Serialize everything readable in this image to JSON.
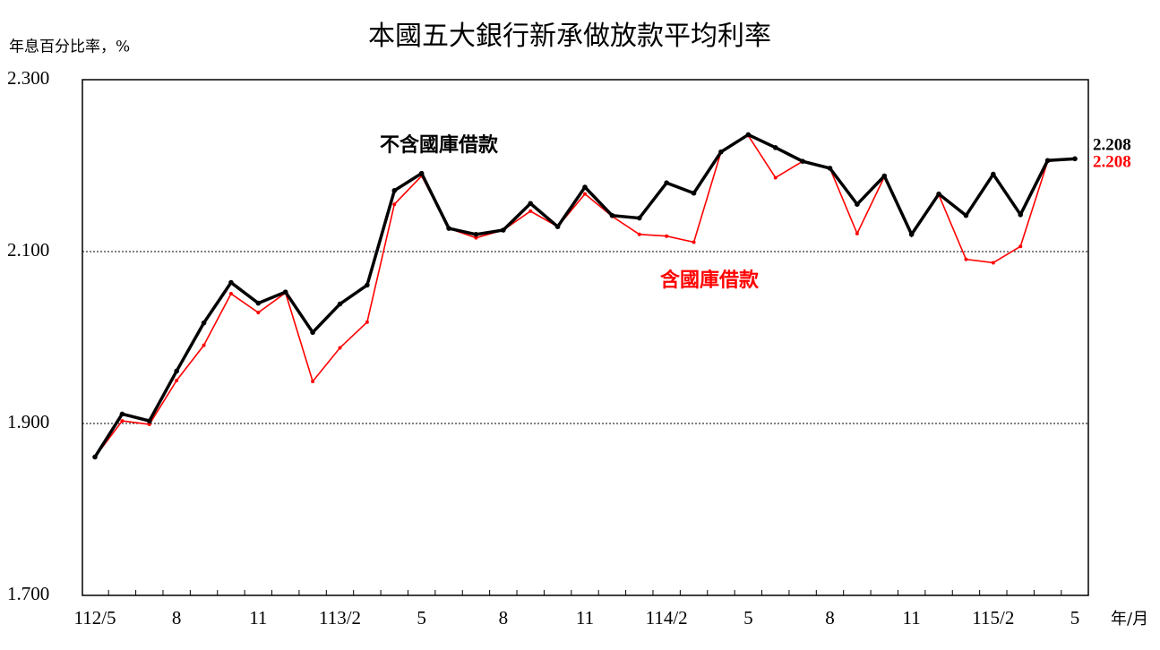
{
  "chart_data": {
    "type": "line",
    "title": "本國五大銀行新承做放款平均利率",
    "y_label": "年息百分比率，%",
    "x_label": "年/月",
    "categories": [
      "112/5",
      null,
      null,
      "8",
      null,
      null,
      "11",
      null,
      null,
      "113/2",
      null,
      null,
      "5",
      null,
      null,
      "8",
      null,
      null,
      "11",
      null,
      null,
      "114/2",
      null,
      null,
      "5",
      null,
      null,
      "8",
      null,
      null,
      "11",
      null,
      null,
      "115/2",
      null,
      null,
      "5"
    ],
    "series": [
      {
        "name": "不含國庫借款",
        "color": "#000000",
        "values": [
          1.861,
          1.911,
          1.903,
          1.961,
          2.017,
          2.064,
          2.04,
          2.053,
          2.006,
          2.039,
          2.061,
          2.171,
          2.191,
          2.127,
          2.12,
          2.125,
          2.156,
          2.129,
          2.175,
          2.142,
          2.139,
          2.18,
          2.168,
          2.216,
          2.236,
          2.221,
          2.205,
          2.197,
          2.155,
          2.188,
          2.12,
          2.167,
          2.142,
          2.19,
          2.143,
          2.206,
          2.208
        ]
      },
      {
        "name": "含國庫借款",
        "color": "#ff0000",
        "values": [
          1.861,
          1.903,
          1.899,
          1.95,
          1.991,
          2.051,
          2.029,
          2.052,
          1.949,
          1.988,
          2.018,
          2.155,
          2.188,
          2.127,
          2.116,
          2.125,
          2.147,
          2.129,
          2.167,
          2.141,
          2.12,
          2.118,
          2.111,
          2.216,
          2.235,
          2.186,
          2.205,
          2.197,
          2.121,
          2.187,
          2.12,
          2.166,
          2.091,
          2.087,
          2.106,
          2.205,
          2.208
        ]
      }
    ],
    "ylim": [
      1.7,
      2.3
    ],
    "yticks": [
      {
        "value": 1.7,
        "label": "1.700"
      },
      {
        "value": 1.9,
        "label": "1.900"
      },
      {
        "value": 2.1,
        "label": "2.100"
      },
      {
        "value": 2.3,
        "label": "2.300"
      }
    ],
    "grid": true
  }
}
